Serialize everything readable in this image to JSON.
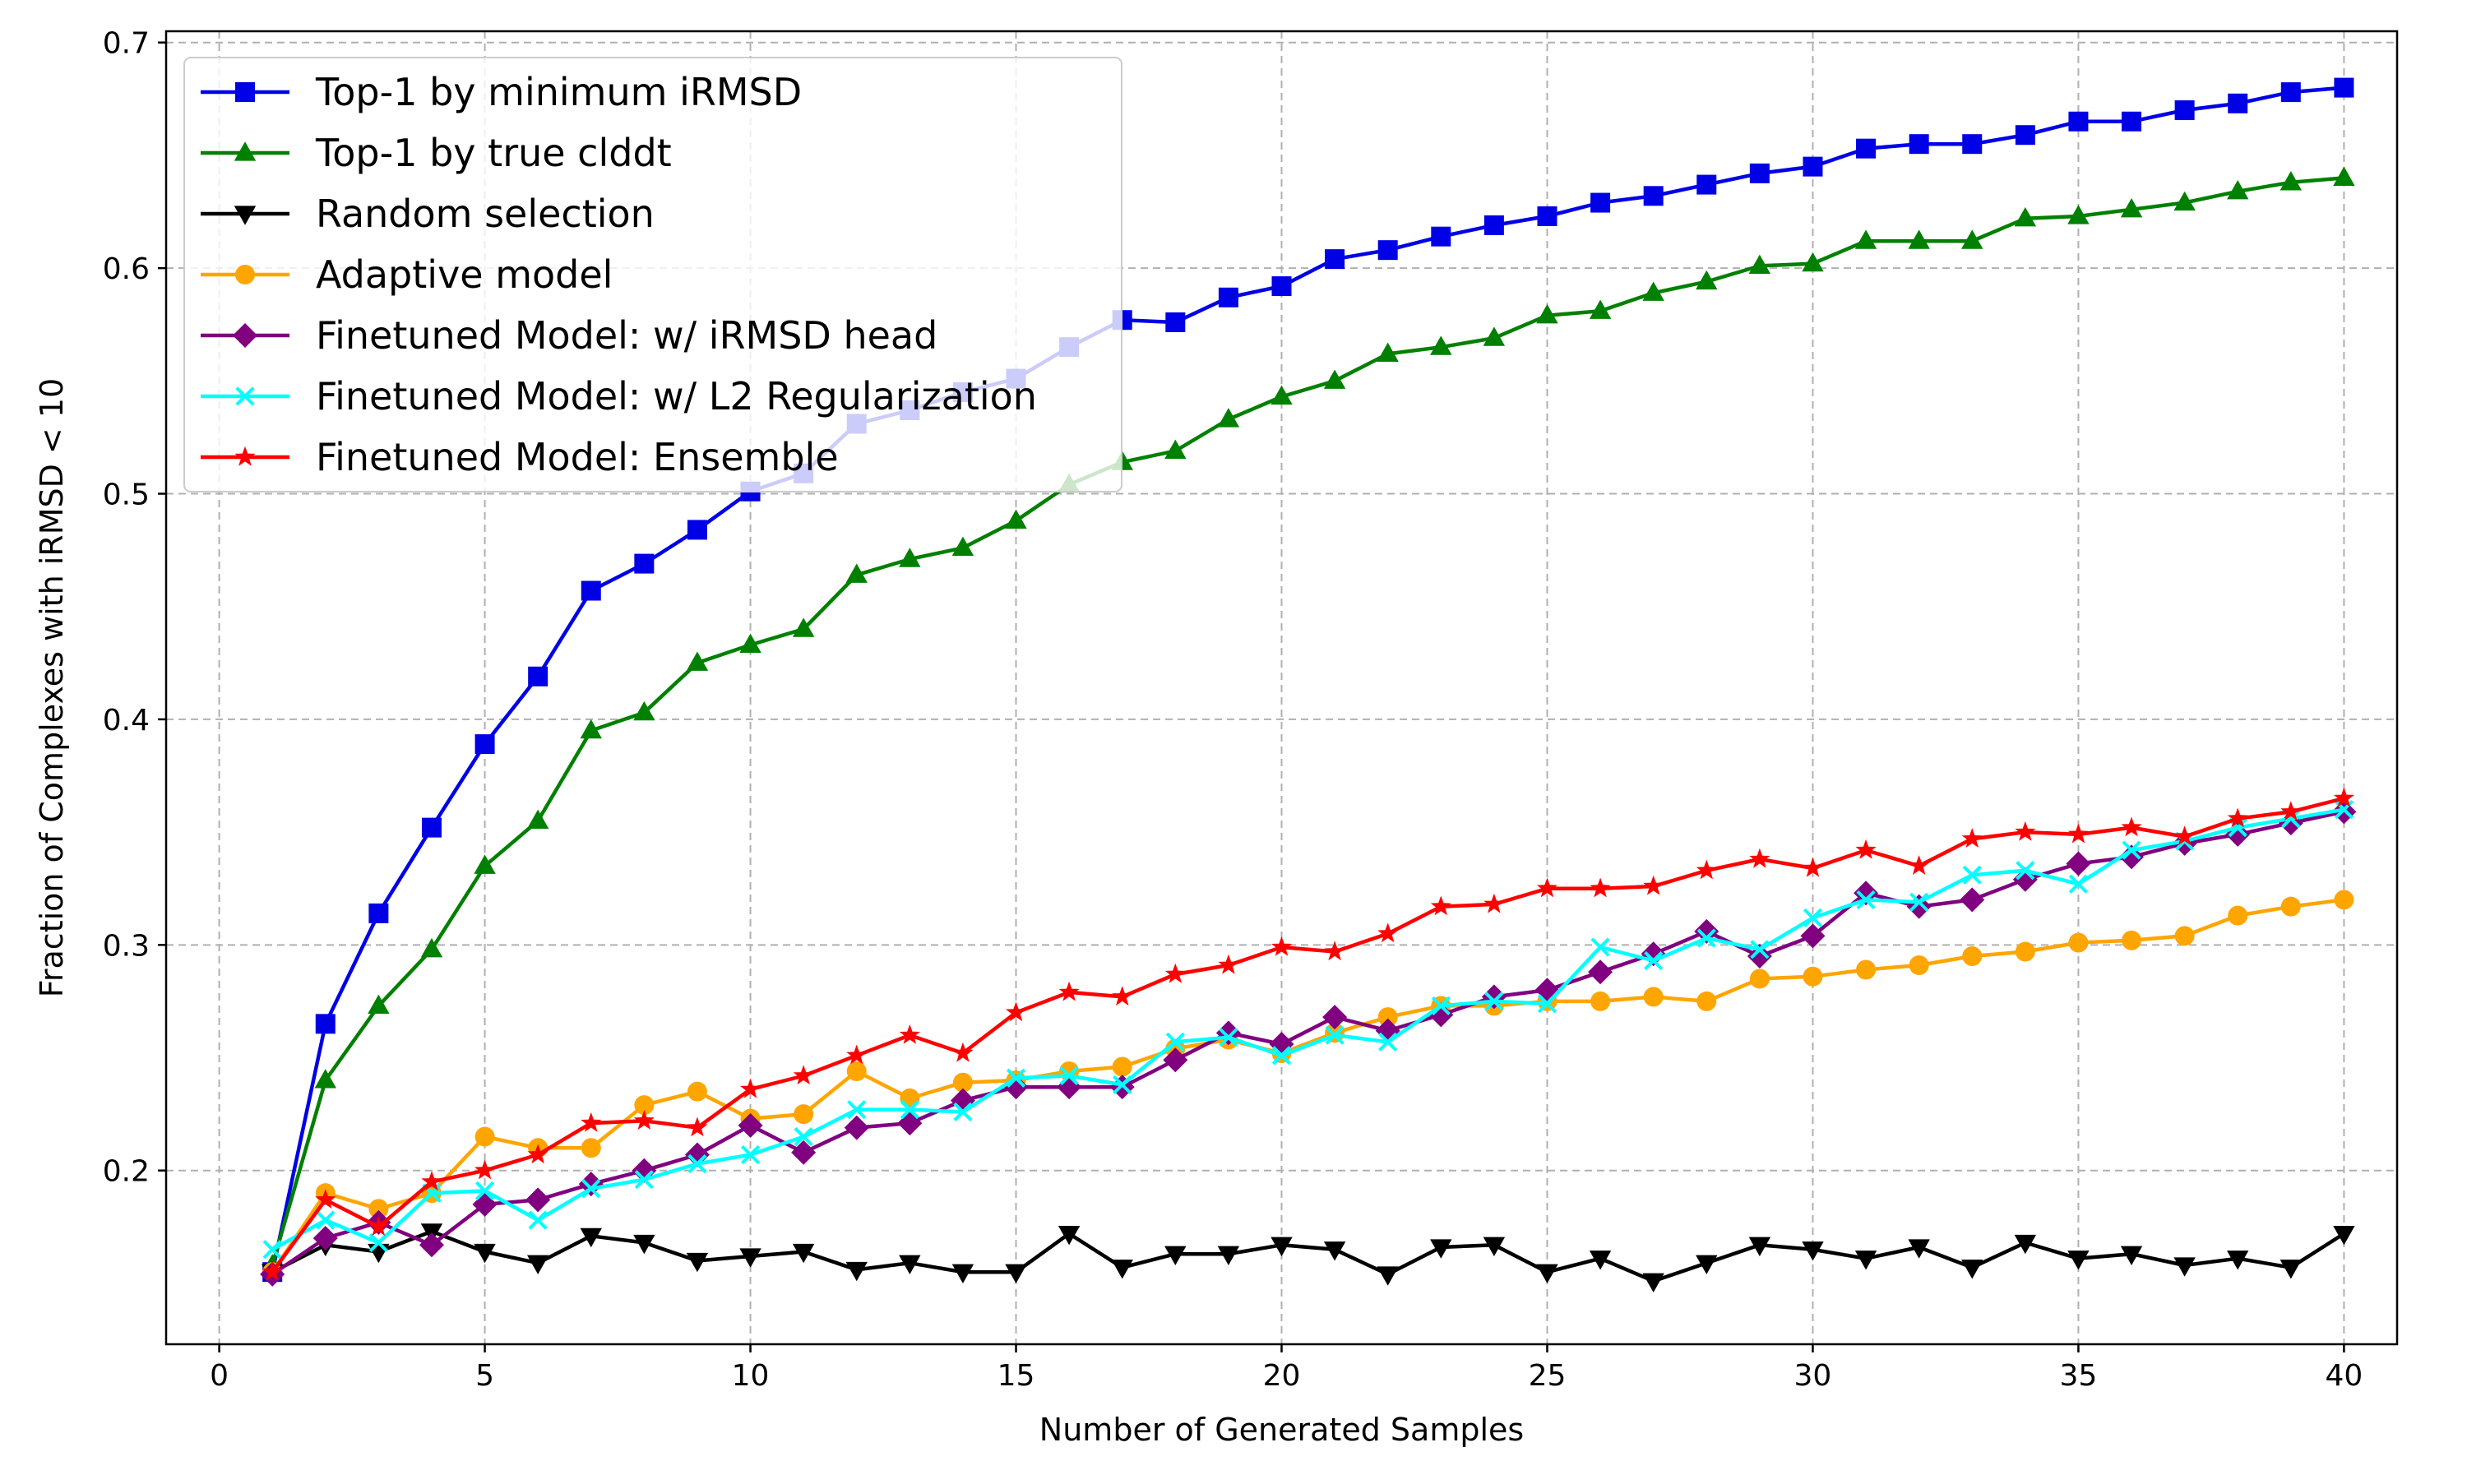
{
  "chart_data": {
    "type": "line",
    "title": "",
    "xlabel": "Number of Generated Samples",
    "ylabel": "Fraction of Complexes with iRMSD < 10",
    "xlim": [
      -1.0,
      41.0
    ],
    "ylim": [
      0.123,
      0.705
    ],
    "xticks": [
      0,
      5,
      10,
      15,
      20,
      25,
      30,
      35,
      40
    ],
    "yticks": [
      0.2,
      0.3,
      0.4,
      0.5,
      0.6,
      0.7
    ],
    "grid": true,
    "legend_position": "top-left",
    "x": [
      1,
      2,
      3,
      4,
      5,
      6,
      7,
      8,
      9,
      10,
      11,
      12,
      13,
      14,
      15,
      16,
      17,
      18,
      19,
      20,
      21,
      22,
      23,
      24,
      25,
      26,
      27,
      28,
      29,
      30,
      31,
      32,
      33,
      34,
      35,
      36,
      37,
      38,
      39,
      40
    ],
    "series": [
      {
        "name": "Top-1 by minimum iRMSD",
        "color": "#0000e6",
        "marker": "square",
        "values": [
          0.155,
          0.265,
          0.314,
          0.352,
          0.389,
          0.419,
          0.457,
          0.469,
          0.484,
          0.501,
          0.509,
          0.531,
          0.537,
          0.545,
          0.551,
          0.565,
          0.577,
          0.576,
          0.587,
          0.592,
          0.604,
          0.608,
          0.614,
          0.619,
          0.623,
          0.629,
          0.632,
          0.637,
          0.642,
          0.645,
          0.653,
          0.655,
          0.655,
          0.659,
          0.665,
          0.665,
          0.67,
          0.673,
          0.678,
          0.68
        ]
      },
      {
        "name": "Top-1 by true clddt",
        "color": "#008000",
        "marker": "triangle-up",
        "values": [
          0.158,
          0.24,
          0.273,
          0.298,
          0.335,
          0.355,
          0.395,
          0.403,
          0.425,
          0.433,
          0.44,
          0.464,
          0.471,
          0.476,
          0.488,
          0.504,
          0.514,
          0.519,
          0.533,
          0.543,
          0.55,
          0.562,
          0.565,
          0.569,
          0.579,
          0.581,
          0.589,
          0.594,
          0.601,
          0.602,
          0.612,
          0.612,
          0.612,
          0.622,
          0.623,
          0.626,
          0.629,
          0.634,
          0.638,
          0.64
        ]
      },
      {
        "name": "Random selection",
        "color": "#000000",
        "marker": "triangle-down",
        "values": [
          0.155,
          0.167,
          0.164,
          0.173,
          0.164,
          0.159,
          0.171,
          0.168,
          0.16,
          0.162,
          0.164,
          0.156,
          0.159,
          0.155,
          0.155,
          0.172,
          0.157,
          0.163,
          0.163,
          0.167,
          0.165,
          0.154,
          0.166,
          0.167,
          0.155,
          0.161,
          0.151,
          0.159,
          0.167,
          0.165,
          0.161,
          0.166,
          0.157,
          0.168,
          0.161,
          0.163,
          0.158,
          0.161,
          0.157,
          0.172
        ]
      },
      {
        "name": "Adaptive model",
        "color": "#ffa500",
        "marker": "circle",
        "values": [
          0.155,
          0.19,
          0.183,
          0.19,
          0.215,
          0.21,
          0.21,
          0.229,
          0.235,
          0.223,
          0.225,
          0.244,
          0.232,
          0.239,
          0.24,
          0.244,
          0.246,
          0.254,
          0.258,
          0.252,
          0.261,
          0.268,
          0.273,
          0.273,
          0.275,
          0.275,
          0.277,
          0.275,
          0.285,
          0.286,
          0.289,
          0.291,
          0.295,
          0.297,
          0.301,
          0.302,
          0.304,
          0.313,
          0.317,
          0.32
        ]
      },
      {
        "name": "Finetuned Model: w/ iRMSD head",
        "color": "#800080",
        "marker": "diamond",
        "values": [
          0.154,
          0.17,
          0.177,
          0.167,
          0.185,
          0.187,
          0.194,
          0.2,
          0.207,
          0.22,
          0.208,
          0.219,
          0.221,
          0.231,
          0.237,
          0.237,
          0.237,
          0.249,
          0.261,
          0.256,
          0.268,
          0.262,
          0.269,
          0.277,
          0.28,
          0.288,
          0.296,
          0.306,
          0.295,
          0.304,
          0.323,
          0.317,
          0.32,
          0.329,
          0.336,
          0.339,
          0.345,
          0.349,
          0.354,
          0.359
        ]
      },
      {
        "name": "Finetuned Model: w/ L2 Regularization",
        "color": "#00ffff",
        "marker": "x",
        "values": [
          0.165,
          0.178,
          0.168,
          0.19,
          0.191,
          0.178,
          0.192,
          0.196,
          0.203,
          0.207,
          0.215,
          0.227,
          0.227,
          0.226,
          0.241,
          0.242,
          0.238,
          0.257,
          0.259,
          0.251,
          0.26,
          0.257,
          0.273,
          0.275,
          0.274,
          0.299,
          0.293,
          0.303,
          0.298,
          0.312,
          0.32,
          0.319,
          0.331,
          0.333,
          0.327,
          0.342,
          0.346,
          0.352,
          0.356,
          0.36
        ]
      },
      {
        "name": "Finetuned Model: Ensemble",
        "color": "#ff0000",
        "marker": "star",
        "values": [
          0.155,
          0.187,
          0.175,
          0.195,
          0.2,
          0.207,
          0.221,
          0.222,
          0.219,
          0.236,
          0.242,
          0.251,
          0.26,
          0.252,
          0.27,
          0.279,
          0.277,
          0.287,
          0.291,
          0.299,
          0.297,
          0.305,
          0.317,
          0.318,
          0.325,
          0.325,
          0.326,
          0.333,
          0.338,
          0.334,
          0.342,
          0.335,
          0.347,
          0.35,
          0.349,
          0.352,
          0.348,
          0.356,
          0.359,
          0.365
        ]
      }
    ]
  }
}
